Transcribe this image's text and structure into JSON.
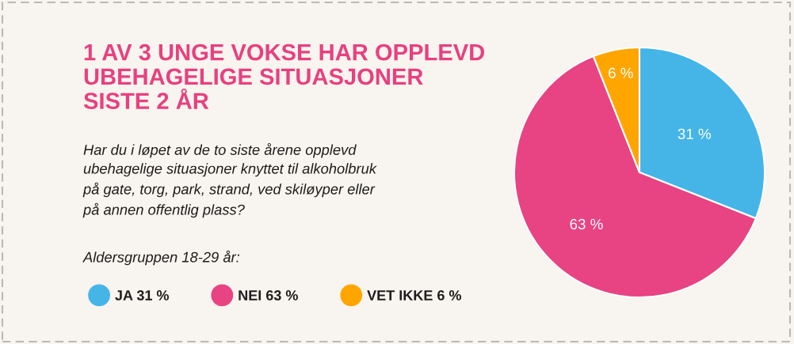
{
  "chart_data": {
    "type": "pie",
    "title": "1 AV 3 UNGE VOKSE HAR OPPLEVD\nUBEHAGELIGE SITUASJONER\nSISTE 2 ÅR",
    "subtitle": "Har du i løpet av de to siste årene opplevd\nubehagelige situasjoner knyttet til alkoholbruk\npå gate, torg, park, strand, ved skiløyper eller\npå annen offentlig plass?",
    "annotations": [
      "Aldersgruppen 18-29 år:"
    ],
    "categories": [
      "JA",
      "NEI",
      "VET IKKE"
    ],
    "values": [
      31,
      63,
      6
    ],
    "colors": [
      "#45b5e8",
      "#e84382",
      "#ffa500"
    ],
    "value_labels": [
      "31 %",
      "63 %",
      "6 %"
    ],
    "legend": "bottom left"
  }
}
